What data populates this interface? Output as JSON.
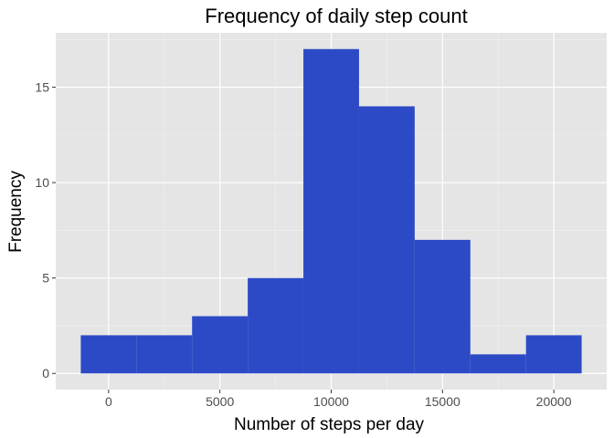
{
  "chart_data": {
    "type": "bar",
    "title": "Frequency of daily step count",
    "xlabel": "Number of steps per day",
    "ylabel": "Frequency",
    "bins": [
      {
        "x0": -1250,
        "x1": 1250,
        "count": 2
      },
      {
        "x0": 1250,
        "x1": 3750,
        "count": 2
      },
      {
        "x0": 3750,
        "x1": 6250,
        "count": 3
      },
      {
        "x0": 6250,
        "x1": 8750,
        "count": 5
      },
      {
        "x0": 8750,
        "x1": 11250,
        "count": 17
      },
      {
        "x0": 11250,
        "x1": 13750,
        "count": 14
      },
      {
        "x0": 13750,
        "x1": 16250,
        "count": 7
      },
      {
        "x0": 16250,
        "x1": 18750,
        "count": 1
      },
      {
        "x0": 18750,
        "x1": 21250,
        "count": 2
      }
    ],
    "xlim": [
      -2375,
      22375
    ],
    "ylim": [
      -0.85,
      17.85
    ],
    "x_ticks": [
      0,
      5000,
      10000,
      15000,
      20000
    ],
    "x_tick_labels": [
      "0",
      "5000",
      "10000",
      "15000",
      "20000"
    ],
    "y_ticks": [
      0,
      5,
      10,
      15
    ],
    "y_tick_labels": [
      "0",
      "5",
      "10",
      "15"
    ],
    "grid": true,
    "legend": "none",
    "colors": {
      "bar": "#2d4ac6",
      "panel": "#e5e5e5",
      "grid_major": "#ffffff",
      "grid_minor": "#f2f2f2",
      "tick": "#333333"
    }
  }
}
